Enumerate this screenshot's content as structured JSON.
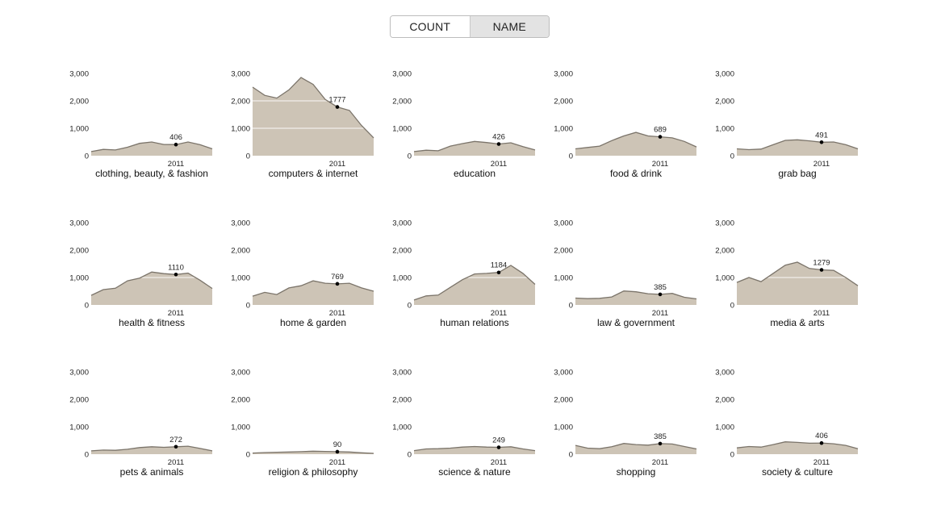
{
  "toggle": {
    "count_label": "COUNT",
    "name_label": "NAME",
    "selected": "NAME"
  },
  "colors": {
    "area_fill": "#cdc4b6",
    "area_line": "#7b746a",
    "grid": "#ffffff",
    "marker": "#000000"
  },
  "chart_data": {
    "type": "area",
    "layout": "small-multiples",
    "ylim": [
      0,
      3000
    ],
    "yticks": [
      "3,000",
      "2,000",
      "1,000",
      "0"
    ],
    "ytick_values": [
      3000,
      2000,
      1000,
      0
    ],
    "xtick_label": "2011",
    "highlight_index": 7,
    "charts": [
      {
        "title": "clothing, beauty, & fashion",
        "value_label": "406",
        "values": [
          150,
          230,
          210,
          310,
          450,
          500,
          410,
          406,
          500,
          400,
          250
        ]
      },
      {
        "title": "computers & internet",
        "value_label": "1777",
        "values": [
          2500,
          2200,
          2100,
          2400,
          2850,
          2600,
          2050,
          1777,
          1650,
          1100,
          650
        ]
      },
      {
        "title": "education",
        "value_label": "426",
        "values": [
          150,
          200,
          180,
          350,
          440,
          520,
          480,
          426,
          470,
          330,
          210
        ]
      },
      {
        "title": "food & drink",
        "value_label": "689",
        "values": [
          250,
          300,
          350,
          550,
          720,
          850,
          720,
          689,
          650,
          520,
          320
        ]
      },
      {
        "title": "grab bag",
        "value_label": "491",
        "values": [
          250,
          220,
          240,
          400,
          560,
          580,
          540,
          491,
          500,
          400,
          250
        ]
      },
      {
        "title": "health & fitness",
        "value_label": "1110",
        "values": [
          350,
          560,
          610,
          880,
          980,
          1200,
          1140,
          1110,
          1160,
          900,
          600
        ]
      },
      {
        "title": "home & garden",
        "value_label": "769",
        "values": [
          320,
          460,
          380,
          620,
          700,
          880,
          790,
          769,
          790,
          620,
          500
        ]
      },
      {
        "title": "human relations",
        "value_label": "1184",
        "values": [
          180,
          330,
          360,
          640,
          920,
          1130,
          1150,
          1184,
          1440,
          1150,
          750
        ]
      },
      {
        "title": "law & government",
        "value_label": "385",
        "values": [
          250,
          230,
          240,
          290,
          510,
          480,
          410,
          385,
          420,
          280,
          220
        ]
      },
      {
        "title": "media & arts",
        "value_label": "1279",
        "values": [
          820,
          1000,
          850,
          1150,
          1450,
          1560,
          1330,
          1279,
          1260,
          1000,
          700
        ]
      },
      {
        "title": "pets & animals",
        "value_label": "272",
        "values": [
          120,
          150,
          140,
          180,
          240,
          270,
          250,
          272,
          290,
          210,
          120
        ]
      },
      {
        "title": "religion & philosophy",
        "value_label": "90",
        "values": [
          40,
          60,
          70,
          80,
          90,
          110,
          100,
          90,
          80,
          50,
          30
        ]
      },
      {
        "title": "science & nature",
        "value_label": "249",
        "values": [
          130,
          190,
          200,
          220,
          260,
          280,
          260,
          249,
          270,
          190,
          130
        ]
      },
      {
        "title": "shopping",
        "value_label": "385",
        "values": [
          320,
          220,
          200,
          270,
          390,
          350,
          330,
          385,
          370,
          280,
          190
        ]
      },
      {
        "title": "society & culture",
        "value_label": "406",
        "values": [
          230,
          280,
          260,
          350,
          450,
          430,
          400,
          406,
          380,
          320,
          200
        ]
      }
    ]
  }
}
